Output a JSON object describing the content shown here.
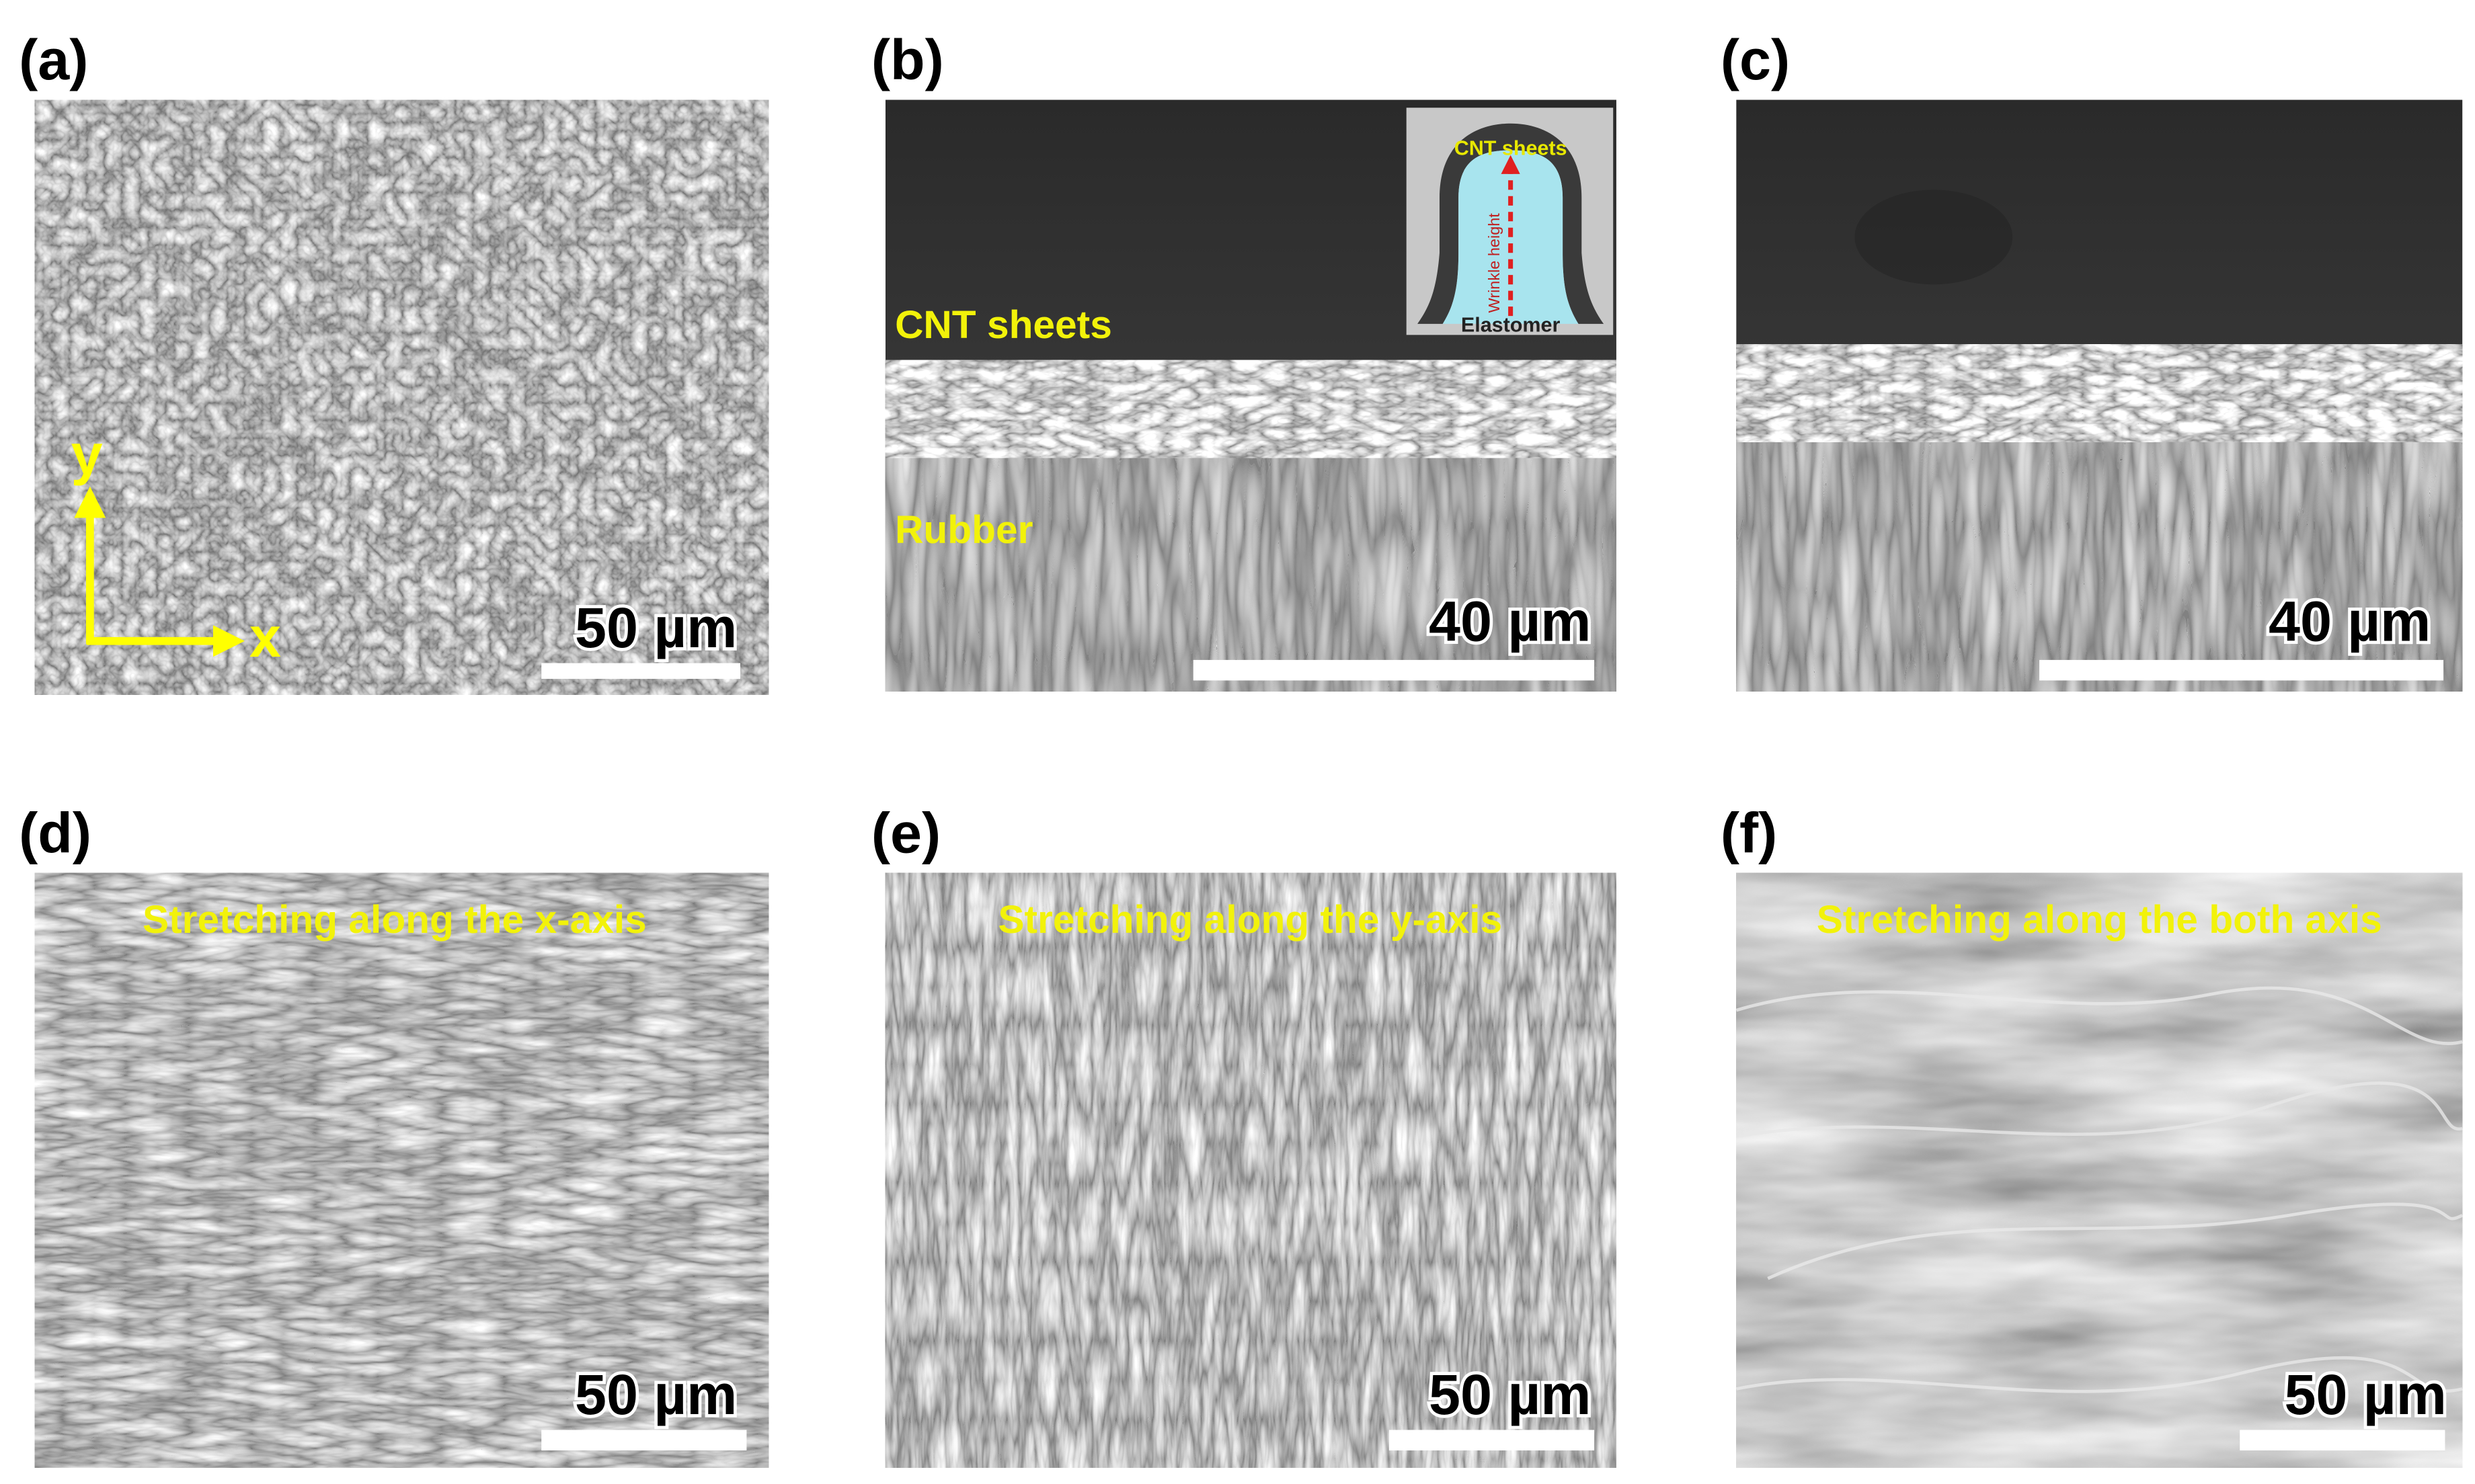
{
  "panels": [
    {
      "label": "(a)",
      "scale_bar": "50 µm",
      "axes": {
        "y": "y",
        "x": "x"
      }
    },
    {
      "label": "(b)",
      "scale_bar": "40 µm",
      "annotations": [
        "CNT sheets",
        "Rubber"
      ],
      "inset": {
        "top": "CNT sheets",
        "arrow": "Wrinkle height",
        "bottom": "Elastomer"
      }
    },
    {
      "label": "(c)",
      "scale_bar": "40 µm"
    },
    {
      "label": "(d)",
      "caption": "Stretching along the x-axis",
      "scale_bar": "50 µm"
    },
    {
      "label": "(e)",
      "caption": "Stretching along the y-axis",
      "scale_bar": "50 µm"
    },
    {
      "label": "(f)",
      "caption": "Stretching along the both axis",
      "scale_bar": "50 µm"
    }
  ]
}
